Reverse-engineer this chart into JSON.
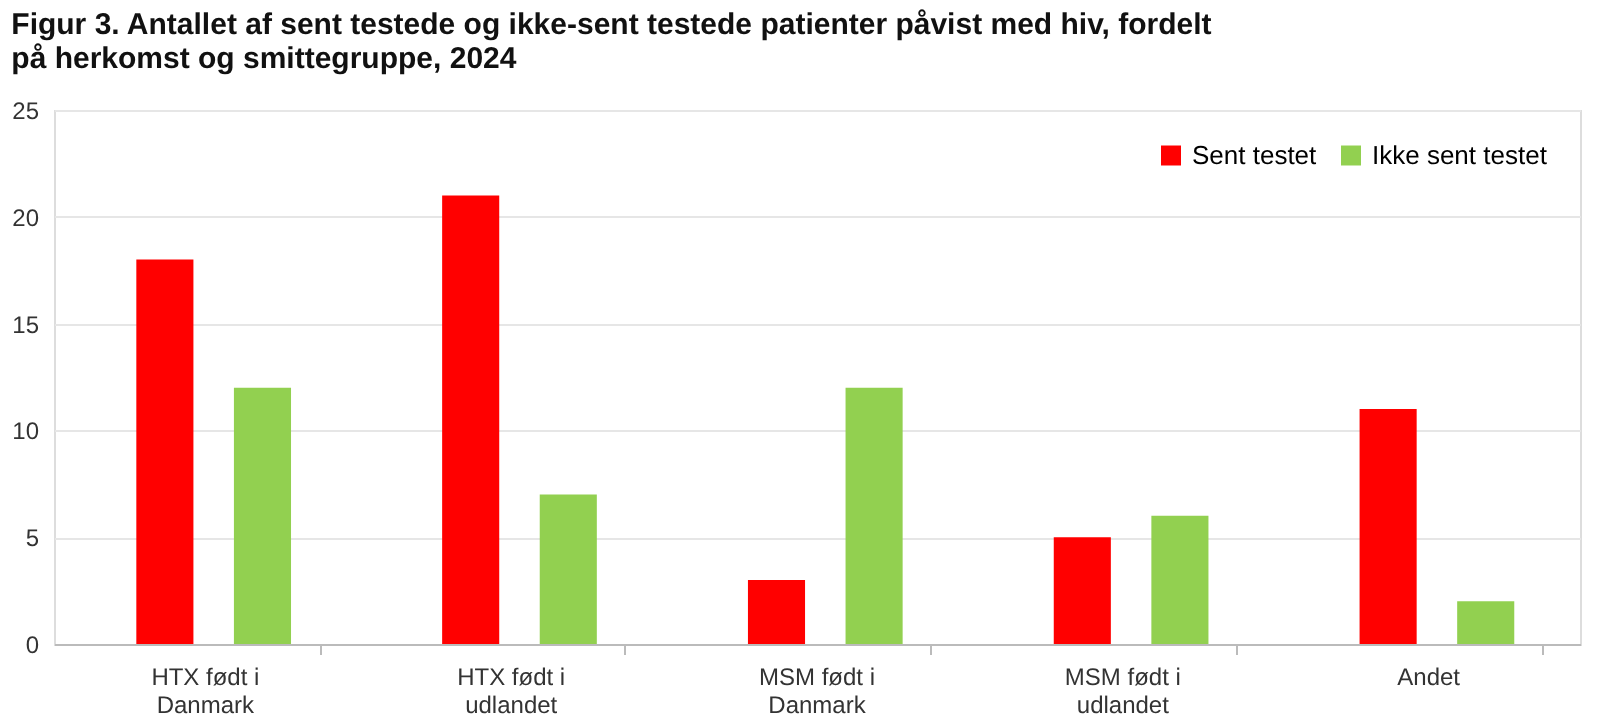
{
  "chart_data": {
    "type": "bar",
    "title": "Figur 3. Antallet af sent testede og ikke-sent testede patienter påvist med hiv, fordelt på herkomst og smittegruppe, 2024",
    "categories": [
      "HTX født i\nDanmark",
      "HTX født i\nudlandet",
      "MSM født i\nDanmark",
      "MSM født i\nudlandet",
      "Andet"
    ],
    "series": [
      {
        "name": "Sent testet",
        "color": "#ff0000",
        "values": [
          18,
          21,
          3,
          5,
          11
        ]
      },
      {
        "name": "Ikke sent testet",
        "color": "#92d050",
        "values": [
          12,
          7,
          12,
          6,
          2
        ]
      }
    ],
    "ylim": [
      0,
      25
    ],
    "yticks": [
      0,
      5,
      10,
      15,
      20,
      25
    ],
    "grid": "y",
    "legend": "top right"
  }
}
